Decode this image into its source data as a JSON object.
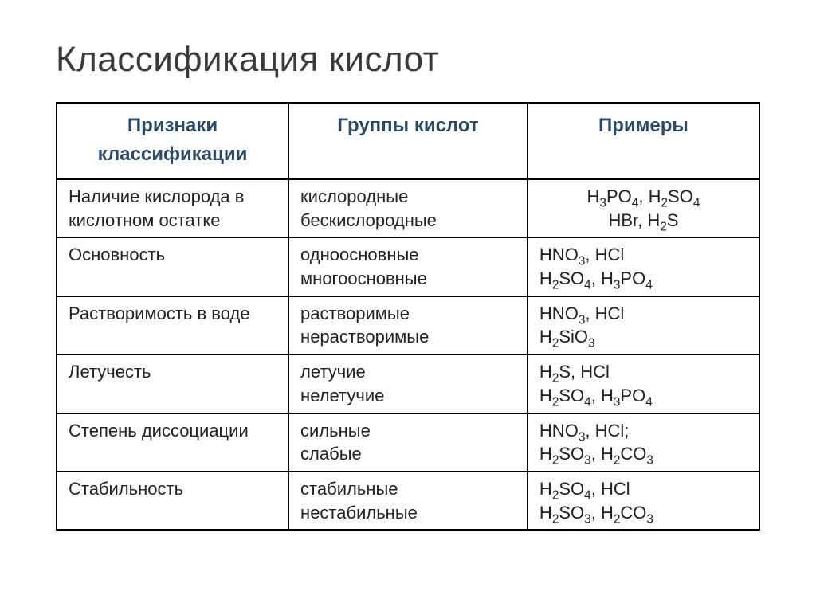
{
  "title": "Классификация кислот",
  "columns": [
    "Признаки классификации",
    "Группы кислот",
    "Примеры"
  ],
  "rows": [
    {
      "criterion": "Наличие кислорода в кислотном остатке",
      "groups": [
        "кислородные",
        "бескислородные"
      ],
      "examples": [
        "H<sub>3</sub>PO<sub>4</sub>, H<sub>2</sub>SO<sub>4</sub>",
        "HBr, H<sub>2</sub>S"
      ],
      "examples_align": "center"
    },
    {
      "criterion": "Основность",
      "groups": [
        "одноосновные",
        "многоосновные"
      ],
      "examples": [
        "HNO<sub>3</sub>, HCl",
        "H<sub>2</sub>SO<sub>4</sub>, H<sub>3</sub>PO<sub>4</sub>"
      ],
      "examples_align": "left"
    },
    {
      "criterion": "Растворимость в воде",
      "groups": [
        "растворимые",
        "нерастворимые"
      ],
      "examples": [
        "HNO<sub>3</sub>, HCl",
        "H<sub>2</sub>SiO<sub>3</sub>"
      ],
      "examples_align": "left"
    },
    {
      "criterion": "Летучесть",
      "groups": [
        "летучие",
        "нелетучие"
      ],
      "examples": [
        "H<sub>2</sub>S, HCl",
        "H<sub>2</sub>SO<sub>4</sub>, H<sub>3</sub>PO<sub>4</sub>"
      ],
      "examples_align": "left"
    },
    {
      "criterion": "Степень диссоциации",
      "groups": [
        "сильные",
        "слабые"
      ],
      "examples": [
        "HNO<sub>3</sub>, HCl;",
        "H<sub>2</sub>SO<sub>3</sub>, H<sub>2</sub>CO<sub>3</sub>"
      ],
      "examples_align": "left"
    },
    {
      "criterion": "Стабильность",
      "groups": [
        "стабильные",
        "нестабильные"
      ],
      "examples": [
        "H<sub>2</sub>SO<sub>4</sub>, HCl",
        "H<sub>2</sub>SO<sub>3</sub>, H<sub>2</sub>CO<sub>3</sub>"
      ],
      "examples_align": "left"
    }
  ],
  "colors": {
    "title": "#3a3a3a",
    "header_text": "#2a4a6a",
    "cell_text": "#222222",
    "border": "#000000",
    "background": "#ffffff"
  },
  "fonts": {
    "title_size_pt": 33,
    "header_size_pt": 18,
    "cell_size_pt": 17
  }
}
